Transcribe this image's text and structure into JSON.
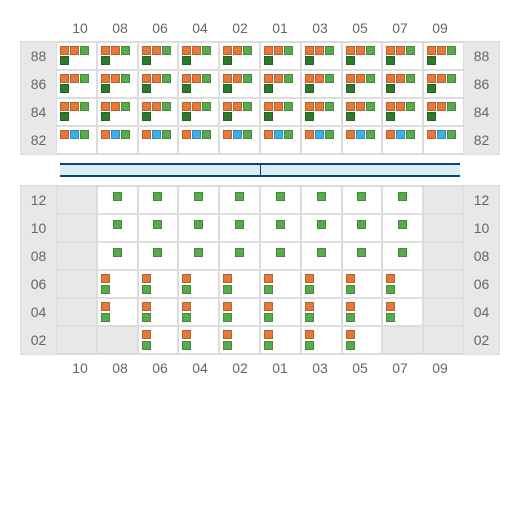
{
  "colors": {
    "orange": "#e67839",
    "green": "#58ab4c",
    "darkgreen": "#2d7a2d",
    "blue": "#3eb0e8",
    "grey_bg": "#e8e8e8",
    "border": "#dddddd",
    "label": "#666666",
    "sep_border": "#0b4470",
    "sep_fill": "#d9eef8"
  },
  "top": {
    "cols": [
      "10",
      "08",
      "06",
      "04",
      "02",
      "01",
      "03",
      "05",
      "07",
      "09"
    ],
    "rows": [
      {
        "label": "88",
        "cells": [
          [
            "o",
            "o",
            "g",
            "dg"
          ],
          [
            "o",
            "o",
            "g",
            "dg"
          ],
          [
            "o",
            "o",
            "g",
            "dg"
          ],
          [
            "o",
            "o",
            "g",
            "dg"
          ],
          [
            "o",
            "o",
            "g",
            "dg"
          ],
          [
            "o",
            "o",
            "g",
            "dg"
          ],
          [
            "o",
            "o",
            "g",
            "dg"
          ],
          [
            "o",
            "o",
            "g",
            "dg"
          ],
          [
            "o",
            "o",
            "g",
            "dg"
          ],
          [
            "o",
            "o",
            "g",
            "dg"
          ]
        ]
      },
      {
        "label": "86",
        "cells": [
          [
            "o",
            "o",
            "g",
            "dg"
          ],
          [
            "o",
            "o",
            "g",
            "dg"
          ],
          [
            "o",
            "o",
            "g",
            "dg"
          ],
          [
            "o",
            "o",
            "g",
            "dg"
          ],
          [
            "o",
            "o",
            "g",
            "dg"
          ],
          [
            "o",
            "o",
            "g",
            "dg"
          ],
          [
            "o",
            "o",
            "g",
            "dg"
          ],
          [
            "o",
            "o",
            "g",
            "dg"
          ],
          [
            "o",
            "o",
            "g",
            "dg"
          ],
          [
            "o",
            "o",
            "g",
            "dg"
          ]
        ]
      },
      {
        "label": "84",
        "cells": [
          [
            "o",
            "o",
            "g",
            "dg"
          ],
          [
            "o",
            "o",
            "g",
            "dg"
          ],
          [
            "o",
            "o",
            "g",
            "dg"
          ],
          [
            "o",
            "o",
            "g",
            "dg"
          ],
          [
            "o",
            "o",
            "g",
            "dg"
          ],
          [
            "o",
            "o",
            "g",
            "dg"
          ],
          [
            "o",
            "o",
            "g",
            "dg"
          ],
          [
            "o",
            "o",
            "g",
            "dg"
          ],
          [
            "o",
            "o",
            "g",
            "dg"
          ],
          [
            "o",
            "o",
            "g",
            "dg"
          ]
        ]
      },
      {
        "label": "82",
        "cells": [
          [
            "o",
            "b",
            "g"
          ],
          [
            "o",
            "b",
            "g"
          ],
          [
            "o",
            "b",
            "g"
          ],
          [
            "o",
            "b",
            "g"
          ],
          [
            "o",
            "b",
            "g"
          ],
          [
            "o",
            "b",
            "g"
          ],
          [
            "o",
            "b",
            "g"
          ],
          [
            "o",
            "b",
            "g"
          ],
          [
            "o",
            "b",
            "g"
          ],
          [
            "o",
            "b",
            "g"
          ]
        ]
      }
    ]
  },
  "bottom": {
    "cols": [
      "10",
      "08",
      "06",
      "04",
      "02",
      "01",
      "03",
      "05",
      "07",
      "09"
    ],
    "rows": [
      {
        "label": "12",
        "cells": [
          [],
          [
            "g"
          ],
          [
            "g"
          ],
          [
            "g"
          ],
          [
            "g"
          ],
          [
            "g"
          ],
          [
            "g"
          ],
          [
            "g"
          ],
          [
            "g"
          ],
          []
        ]
      },
      {
        "label": "10",
        "cells": [
          [],
          [
            "g"
          ],
          [
            "g"
          ],
          [
            "g"
          ],
          [
            "g"
          ],
          [
            "g"
          ],
          [
            "g"
          ],
          [
            "g"
          ],
          [
            "g"
          ],
          []
        ]
      },
      {
        "label": "08",
        "cells": [
          [],
          [
            "g"
          ],
          [
            "g"
          ],
          [
            "g"
          ],
          [
            "g"
          ],
          [
            "g"
          ],
          [
            "g"
          ],
          [
            "g"
          ],
          [
            "g"
          ],
          []
        ]
      },
      {
        "label": "06",
        "cells": [
          [],
          [
            "o",
            "g"
          ],
          [
            "o",
            "g"
          ],
          [
            "o",
            "g"
          ],
          [
            "o",
            "g"
          ],
          [
            "o",
            "g"
          ],
          [
            "o",
            "g"
          ],
          [
            "o",
            "g"
          ],
          [
            "o",
            "g"
          ],
          []
        ]
      },
      {
        "label": "04",
        "cells": [
          [],
          [
            "o",
            "g"
          ],
          [
            "o",
            "g"
          ],
          [
            "o",
            "g"
          ],
          [
            "o",
            "g"
          ],
          [
            "o",
            "g"
          ],
          [
            "o",
            "g"
          ],
          [
            "o",
            "g"
          ],
          [
            "o",
            "g"
          ],
          []
        ]
      },
      {
        "label": "02",
        "cells": [
          [],
          [],
          [
            "o",
            "g"
          ],
          [
            "o",
            "g"
          ],
          [
            "o",
            "g"
          ],
          [
            "o",
            "g"
          ],
          [
            "o",
            "g"
          ],
          [
            "o",
            "g"
          ],
          [],
          []
        ]
      }
    ]
  }
}
